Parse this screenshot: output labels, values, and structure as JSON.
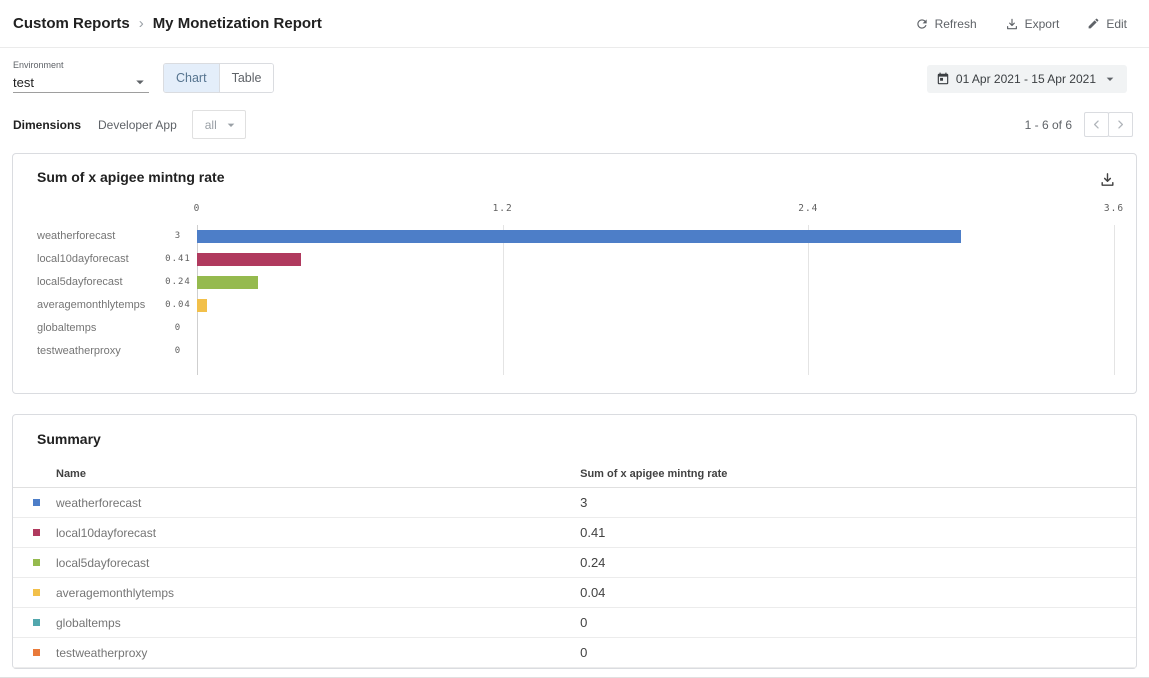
{
  "header": {
    "breadcrumb": {
      "root": "Custom Reports",
      "separator": "›",
      "current": "My Monetization Report"
    },
    "actions": [
      {
        "label": "Refresh"
      },
      {
        "label": "Export"
      },
      {
        "label": "Edit"
      }
    ]
  },
  "toolbar": {
    "environment": {
      "label": "Environment",
      "value": "test"
    },
    "view_toggle": [
      {
        "label": "Chart",
        "active": true
      },
      {
        "label": "Table",
        "active": false
      }
    ],
    "date_range": {
      "value": "01 Apr 2021 - 15 Apr 2021"
    }
  },
  "dimensions_bar": {
    "label": "Dimensions",
    "dimension": "Developer App",
    "selected": "all",
    "pagination": {
      "range": "1 - 6 of 6"
    }
  },
  "chart_card": {
    "title": "Sum of x apigee mintng rate"
  },
  "chart_data": {
    "type": "bar",
    "orientation": "horizontal",
    "title": "Sum of x apigee mintng rate",
    "categories": [
      "weatherforecast",
      "local10dayforecast",
      "local5dayforecast",
      "averagemonthlytemps",
      "globaltemps",
      "testweatherproxy"
    ],
    "values": [
      3,
      0.41,
      0.24,
      0.04,
      0,
      0
    ],
    "value_labels": [
      "3",
      "0.41",
      "0.24",
      "0.04",
      "0",
      "0"
    ],
    "colors": [
      "#4d7ec8",
      "#b03a5e",
      "#95ba4e",
      "#f2c04a",
      "#52a7ad",
      "#e97a3a"
    ],
    "x_ticks": [
      "0",
      "1.2",
      "2.4",
      "3.6"
    ],
    "xlim": [
      0,
      3.6
    ],
    "grid": true,
    "legend_position": "none"
  },
  "summary": {
    "title": "Summary",
    "columns": [
      "Name",
      "Sum of x apigee mintng rate"
    ],
    "rows": [
      {
        "name": "weatherforecast",
        "value": "3",
        "color": "#4d7ec8"
      },
      {
        "name": "local10dayforecast",
        "value": "0.41",
        "color": "#b03a5e"
      },
      {
        "name": "local5dayforecast",
        "value": "0.24",
        "color": "#95ba4e"
      },
      {
        "name": "averagemonthlytemps",
        "value": "0.04",
        "color": "#f2c04a"
      },
      {
        "name": "globaltemps",
        "value": "0",
        "color": "#52a7ad"
      },
      {
        "name": "testweatherproxy",
        "value": "0",
        "color": "#e97a3a"
      }
    ]
  }
}
